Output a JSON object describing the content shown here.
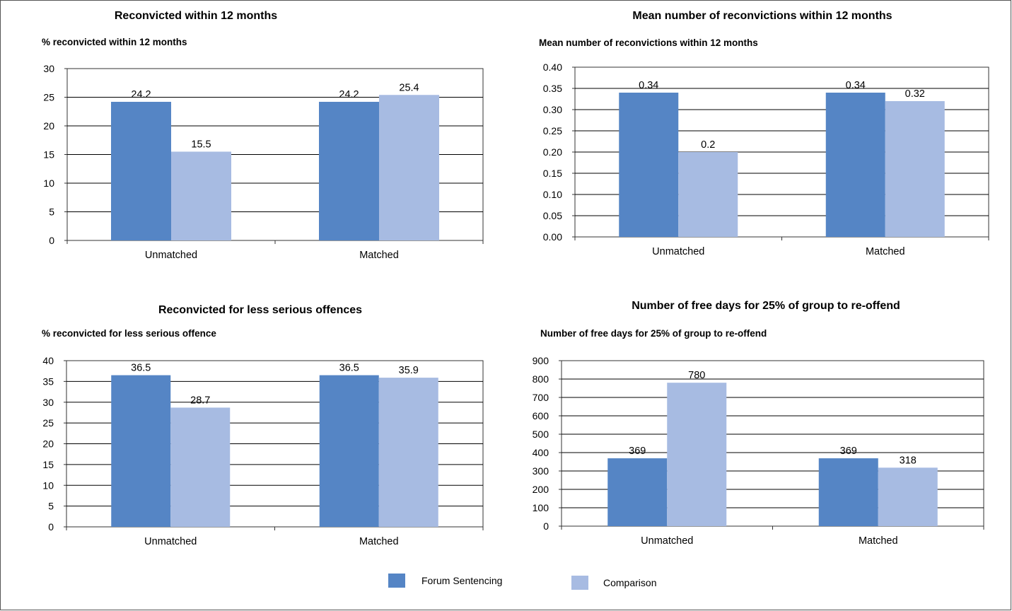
{
  "colors": {
    "series_1": "#5585c5",
    "series_2": "#a7bbe2",
    "axis": "#333333",
    "grid": "#000000"
  },
  "legend": {
    "items": [
      {
        "name": "Forum Sentencing",
        "color": "#5585c5"
      },
      {
        "name": "Comparison",
        "color": "#a7bbe2"
      }
    ],
    "placement": "bottom"
  },
  "chart_data": [
    {
      "type": "bar",
      "title": "Reconvicted within 12 months",
      "ylabel": "% reconvicted within 12 months",
      "xlabel": "",
      "categories": [
        "Unmatched",
        "Matched"
      ],
      "series": [
        {
          "name": "Forum Sentencing",
          "values": [
            24.2,
            24.2
          ]
        },
        {
          "name": "Comparison",
          "values": [
            15.5,
            25.4
          ]
        }
      ],
      "data_labels": [
        [
          "24.2",
          "24.2"
        ],
        [
          "15.5",
          "25.4"
        ]
      ],
      "ylim": [
        0,
        30
      ],
      "yticks": [
        "0",
        "5",
        "10",
        "15",
        "20",
        "25",
        "30"
      ],
      "grid": true
    },
    {
      "type": "bar",
      "title": "Mean number of reconvictions within 12 months",
      "ylabel": "Mean number of reconvictions within 12 months",
      "xlabel": "",
      "categories": [
        "Unmatched",
        "Matched"
      ],
      "series": [
        {
          "name": "Forum Sentencing",
          "values": [
            0.34,
            0.34
          ]
        },
        {
          "name": "Comparison",
          "values": [
            0.2,
            0.32
          ]
        }
      ],
      "data_labels": [
        [
          "0.34",
          "0.34"
        ],
        [
          "0.2",
          "0.32"
        ]
      ],
      "ylim": [
        0,
        0.4
      ],
      "yticks": [
        "0.00",
        "0.05",
        "0.10",
        "0.15",
        "0.20",
        "0.25",
        "0.30",
        "0.35",
        "0.40"
      ],
      "grid": true
    },
    {
      "type": "bar",
      "title": "Reconvicted for less serious offences",
      "ylabel": "% reconvicted for less serious offence",
      "xlabel": "",
      "categories": [
        "Unmatched",
        "Matched"
      ],
      "series": [
        {
          "name": "Forum Sentencing",
          "values": [
            36.5,
            36.5
          ]
        },
        {
          "name": "Comparison",
          "values": [
            28.7,
            35.9
          ]
        }
      ],
      "data_labels": [
        [
          "36.5",
          "36.5"
        ],
        [
          "28.7",
          "35.9"
        ]
      ],
      "ylim": [
        0,
        40
      ],
      "yticks": [
        "0",
        "5",
        "10",
        "15",
        "20",
        "25",
        "30",
        "35",
        "40"
      ],
      "grid": true
    },
    {
      "type": "bar",
      "title": "Number of free days for 25% of group to re-offend",
      "ylabel": "Number of free days for 25% of group to re-offend",
      "xlabel": "",
      "categories": [
        "Unmatched",
        "Matched"
      ],
      "series": [
        {
          "name": "Forum Sentencing",
          "values": [
            369,
            369
          ]
        },
        {
          "name": "Comparison",
          "values": [
            780,
            318
          ]
        }
      ],
      "data_labels": [
        [
          "369",
          "369"
        ],
        [
          "780",
          "318"
        ]
      ],
      "ylim": [
        0,
        900
      ],
      "yticks": [
        "0",
        "100",
        "200",
        "300",
        "400",
        "500",
        "600",
        "700",
        "800",
        "900"
      ],
      "grid": true
    }
  ]
}
